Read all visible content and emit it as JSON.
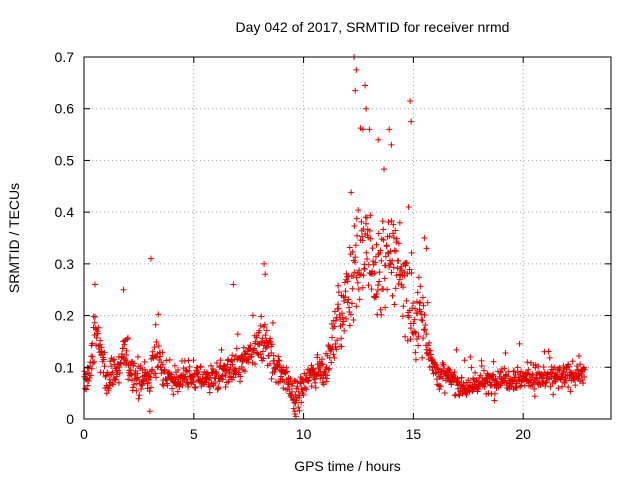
{
  "chart_data": {
    "type": "scatter",
    "title": "Day 042 of 2017, SRMTID for receiver nrmd",
    "xlabel": "GPS time / hours",
    "ylabel": "SRMTID / TECUs",
    "xlim": [
      0,
      24
    ],
    "ylim": [
      0,
      0.7
    ],
    "grid": true,
    "legend": "none",
    "marker": "plus",
    "color": "#e00000",
    "xticks": [
      {
        "value": 0,
        "label": "0"
      },
      {
        "value": 5,
        "label": "5"
      },
      {
        "value": 10,
        "label": "10"
      },
      {
        "value": 15,
        "label": "15"
      },
      {
        "value": 20,
        "label": "20"
      }
    ],
    "yticks": [
      {
        "value": 0,
        "label": "0"
      },
      {
        "value": 0.1,
        "label": "0.1"
      },
      {
        "value": 0.2,
        "label": "0.2"
      },
      {
        "value": 0.3,
        "label": "0.3"
      },
      {
        "value": 0.4,
        "label": "0.4"
      },
      {
        "value": 0.5,
        "label": "0.5"
      },
      {
        "value": 0.6,
        "label": "0.6"
      },
      {
        "value": 0.7,
        "label": "0.7"
      }
    ],
    "envelope": {
      "x": [
        0,
        0.3,
        0.5,
        0.8,
        1.0,
        1.5,
        1.8,
        2.2,
        2.6,
        3.0,
        3.3,
        3.6,
        4.0,
        4.5,
        5.0,
        5.5,
        6.0,
        6.5,
        7.0,
        7.5,
        8.0,
        8.3,
        8.6,
        9.0,
        9.4,
        9.7,
        10.0,
        10.5,
        11.0,
        11.3,
        11.6,
        12.0,
        12.3,
        12.6,
        13.0,
        13.4,
        13.8,
        14.2,
        14.5,
        14.8,
        15.0,
        15.3,
        15.6,
        16.0,
        16.5,
        17.0,
        17.5,
        18.0,
        18.5,
        19.0,
        19.5,
        20.0,
        20.5,
        21.0,
        21.5,
        22.0,
        22.5,
        22.8
      ],
      "median": [
        0.07,
        0.09,
        0.18,
        0.12,
        0.08,
        0.09,
        0.13,
        0.09,
        0.07,
        0.08,
        0.14,
        0.09,
        0.07,
        0.08,
        0.08,
        0.08,
        0.08,
        0.09,
        0.1,
        0.12,
        0.14,
        0.15,
        0.11,
        0.09,
        0.06,
        0.04,
        0.07,
        0.09,
        0.1,
        0.14,
        0.19,
        0.24,
        0.3,
        0.32,
        0.3,
        0.28,
        0.3,
        0.32,
        0.28,
        0.22,
        0.18,
        0.22,
        0.16,
        0.09,
        0.08,
        0.07,
        0.06,
        0.07,
        0.07,
        0.08,
        0.08,
        0.08,
        0.08,
        0.08,
        0.08,
        0.08,
        0.09,
        0.09
      ],
      "spread": [
        0.02,
        0.03,
        0.04,
        0.04,
        0.03,
        0.03,
        0.04,
        0.03,
        0.03,
        0.03,
        0.05,
        0.03,
        0.03,
        0.025,
        0.025,
        0.025,
        0.025,
        0.03,
        0.03,
        0.035,
        0.04,
        0.05,
        0.04,
        0.035,
        0.03,
        0.03,
        0.03,
        0.03,
        0.035,
        0.04,
        0.05,
        0.09,
        0.11,
        0.11,
        0.11,
        0.1,
        0.1,
        0.1,
        0.1,
        0.08,
        0.06,
        0.07,
        0.05,
        0.03,
        0.025,
        0.025,
        0.02,
        0.02,
        0.025,
        0.025,
        0.025,
        0.025,
        0.025,
        0.025,
        0.025,
        0.025,
        0.025,
        0.025
      ]
    },
    "highlight_points": [
      {
        "x": 0.5,
        "y": 0.26
      },
      {
        "x": 1.8,
        "y": 0.25
      },
      {
        "x": 3.05,
        "y": 0.31
      },
      {
        "x": 6.8,
        "y": 0.26
      },
      {
        "x": 8.2,
        "y": 0.3
      },
      {
        "x": 8.25,
        "y": 0.28
      },
      {
        "x": 12.3,
        "y": 0.7
      },
      {
        "x": 12.4,
        "y": 0.675
      },
      {
        "x": 12.35,
        "y": 0.635
      },
      {
        "x": 12.8,
        "y": 0.645
      },
      {
        "x": 12.85,
        "y": 0.6
      },
      {
        "x": 14.85,
        "y": 0.615
      },
      {
        "x": 14.9,
        "y": 0.575
      },
      {
        "x": 13.0,
        "y": 0.56
      },
      {
        "x": 13.9,
        "y": 0.56
      },
      {
        "x": 14.0,
        "y": 0.53
      },
      {
        "x": 12.7,
        "y": 0.56
      },
      {
        "x": 13.4,
        "y": 0.54
      },
      {
        "x": 15.5,
        "y": 0.35
      },
      {
        "x": 15.6,
        "y": 0.33
      },
      {
        "x": 9.6,
        "y": 0.01
      },
      {
        "x": 9.55,
        "y": 0.02
      },
      {
        "x": 9.65,
        "y": 0.005
      },
      {
        "x": 3.0,
        "y": 0.015
      }
    ],
    "samples_per_hour": 58
  }
}
